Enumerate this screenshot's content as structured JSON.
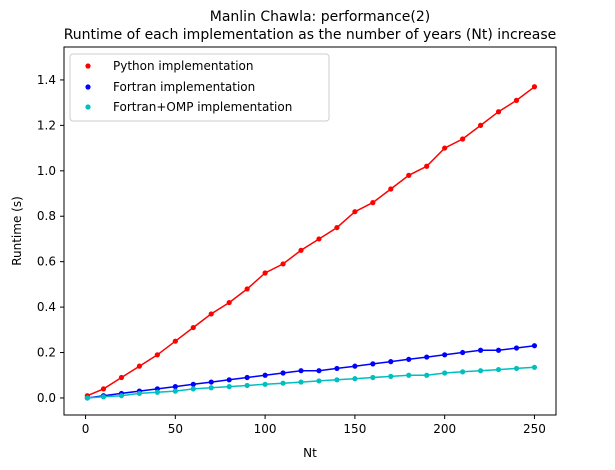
{
  "chart_data": {
    "type": "scatter",
    "title": "Manlin Chawla: performance(2)",
    "subtitle": "Runtime of each implementation as the number of years (Nt) increase",
    "xlabel": "Nt",
    "ylabel": "Runtime (s)",
    "xlim": [
      -12,
      262
    ],
    "ylim": [
      -0.075,
      1.545
    ],
    "xticks": [
      0,
      50,
      100,
      150,
      200,
      250
    ],
    "yticks": [
      0.0,
      0.2,
      0.4,
      0.6,
      0.8,
      1.0,
      1.2,
      1.4
    ],
    "ytick_labels": [
      "0.0",
      "0.2",
      "0.4",
      "0.6",
      "0.8",
      "1.0",
      "1.2",
      "1.4"
    ],
    "grid": false,
    "legend_position": "top-left",
    "series": [
      {
        "name": "Python implementation",
        "color": "#ff0000",
        "marker": "dot",
        "x": [
          1,
          10,
          20,
          30,
          40,
          50,
          60,
          70,
          80,
          90,
          100,
          110,
          120,
          130,
          140,
          150,
          160,
          170,
          180,
          190,
          200,
          210,
          220,
          230,
          240,
          250
        ],
        "y": [
          0.01,
          0.04,
          0.09,
          0.14,
          0.19,
          0.25,
          0.31,
          0.37,
          0.42,
          0.48,
          0.55,
          0.59,
          0.65,
          0.7,
          0.75,
          0.82,
          0.86,
          0.92,
          0.98,
          1.02,
          1.1,
          1.14,
          1.2,
          1.26,
          1.31,
          1.37
        ]
      },
      {
        "name": "Fortran implementation",
        "color": "#0000ff",
        "marker": "dot",
        "x": [
          1,
          10,
          20,
          30,
          40,
          50,
          60,
          70,
          80,
          90,
          100,
          110,
          120,
          130,
          140,
          150,
          160,
          170,
          180,
          190,
          200,
          210,
          220,
          230,
          240,
          250
        ],
        "y": [
          0.0,
          0.01,
          0.02,
          0.03,
          0.04,
          0.05,
          0.06,
          0.07,
          0.08,
          0.09,
          0.1,
          0.11,
          0.12,
          0.12,
          0.13,
          0.14,
          0.15,
          0.16,
          0.17,
          0.18,
          0.19,
          0.2,
          0.21,
          0.21,
          0.22,
          0.23
        ]
      },
      {
        "name": "Fortran+OMP implementation",
        "color": "#00bfbf",
        "marker": "dot",
        "x": [
          1,
          10,
          20,
          30,
          40,
          50,
          60,
          70,
          80,
          90,
          100,
          110,
          120,
          130,
          140,
          150,
          160,
          170,
          180,
          190,
          200,
          210,
          220,
          230,
          240,
          250
        ],
        "y": [
          0.0,
          0.005,
          0.01,
          0.02,
          0.025,
          0.03,
          0.04,
          0.045,
          0.05,
          0.055,
          0.06,
          0.065,
          0.07,
          0.075,
          0.08,
          0.085,
          0.09,
          0.095,
          0.1,
          0.1,
          0.11,
          0.115,
          0.12,
          0.125,
          0.13,
          0.135
        ]
      }
    ]
  }
}
